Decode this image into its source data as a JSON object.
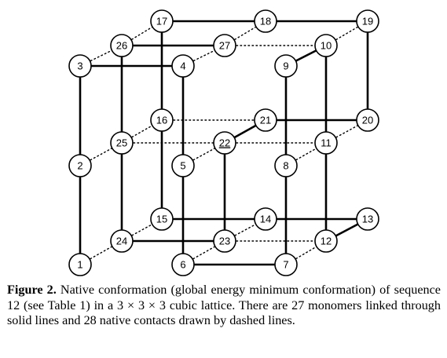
{
  "figure": {
    "monomers": [
      "1",
      "2",
      "3",
      "4",
      "5",
      "6",
      "7",
      "8",
      "9",
      "10",
      "11",
      "12",
      "13",
      "14",
      "15",
      "16",
      "17",
      "18",
      "19",
      "20",
      "21",
      "22",
      "23",
      "24",
      "25",
      "26",
      "27"
    ],
    "underlined_monomer": "22",
    "caption_label": "Figure 2.",
    "caption_text": "Native conformation (global energy minimum conformation) of sequence 12 (see Table 1) in a 3 × 3 × 3 cubic lattice. There are 27 monomers linked through solid lines and 28 native contacts drawn by dashed lines."
  }
}
